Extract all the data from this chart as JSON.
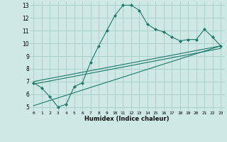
{
  "xlabel": "Humidex (Indice chaleur)",
  "ylabel": "",
  "bg_color": "#cde8e5",
  "grid_color": "#aed0cc",
  "line_color": "#1e7a6a",
  "xlim": [
    -0.5,
    23.5
  ],
  "ylim": [
    4.7,
    13.3
  ],
  "xticks": [
    0,
    1,
    2,
    3,
    4,
    5,
    6,
    7,
    8,
    9,
    10,
    11,
    12,
    13,
    14,
    15,
    16,
    17,
    18,
    19,
    20,
    21,
    22,
    23
  ],
  "yticks": [
    5,
    6,
    7,
    8,
    9,
    10,
    11,
    12,
    13
  ],
  "main_x": [
    0,
    1,
    2,
    3,
    4,
    5,
    6,
    7,
    8,
    9,
    10,
    11,
    12,
    13,
    14,
    15,
    16,
    17,
    18,
    19,
    20,
    21,
    22,
    23
  ],
  "main_y": [
    6.9,
    6.5,
    5.8,
    5.0,
    5.2,
    6.6,
    6.9,
    8.5,
    9.8,
    11.0,
    12.2,
    13.0,
    13.0,
    12.6,
    11.5,
    11.1,
    10.9,
    10.5,
    10.2,
    10.3,
    10.3,
    11.1,
    10.5,
    9.8
  ],
  "line1_x": [
    0,
    23
  ],
  "line1_y": [
    7.0,
    9.8
  ],
  "line2_x": [
    0,
    23
  ],
  "line2_y": [
    6.8,
    9.6
  ],
  "line3_x": [
    0,
    23
  ],
  "line3_y": [
    5.1,
    9.8
  ]
}
